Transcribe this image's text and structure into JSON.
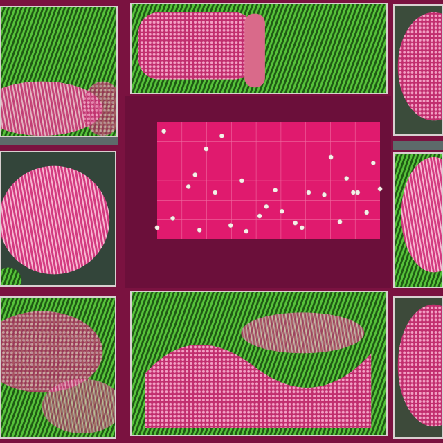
{
  "colors": {
    "background": "#7a1240",
    "plot_face": "#e01a6e",
    "marker": "#f7efe9",
    "panel_green": "#2f7d1f",
    "panel_pink": "#e8478f"
  },
  "chart_data": {
    "type": "scatter",
    "title": "",
    "xlabel": "",
    "ylabel": "",
    "xlim": [
      0,
      100
    ],
    "ylim": [
      0,
      100
    ],
    "grid": true,
    "x": [
      0,
      3,
      7,
      14,
      17,
      19,
      22,
      26,
      29,
      33,
      38,
      40,
      46,
      49,
      53,
      56,
      62,
      65,
      68,
      75,
      78,
      82,
      85,
      88,
      90,
      94,
      97,
      100
    ],
    "y": [
      10,
      92,
      18,
      45,
      55,
      8,
      77,
      40,
      88,
      12,
      50,
      7,
      20,
      28,
      42,
      24,
      14,
      10,
      40,
      38,
      70,
      15,
      52,
      40,
      40,
      23,
      65,
      43
    ]
  }
}
